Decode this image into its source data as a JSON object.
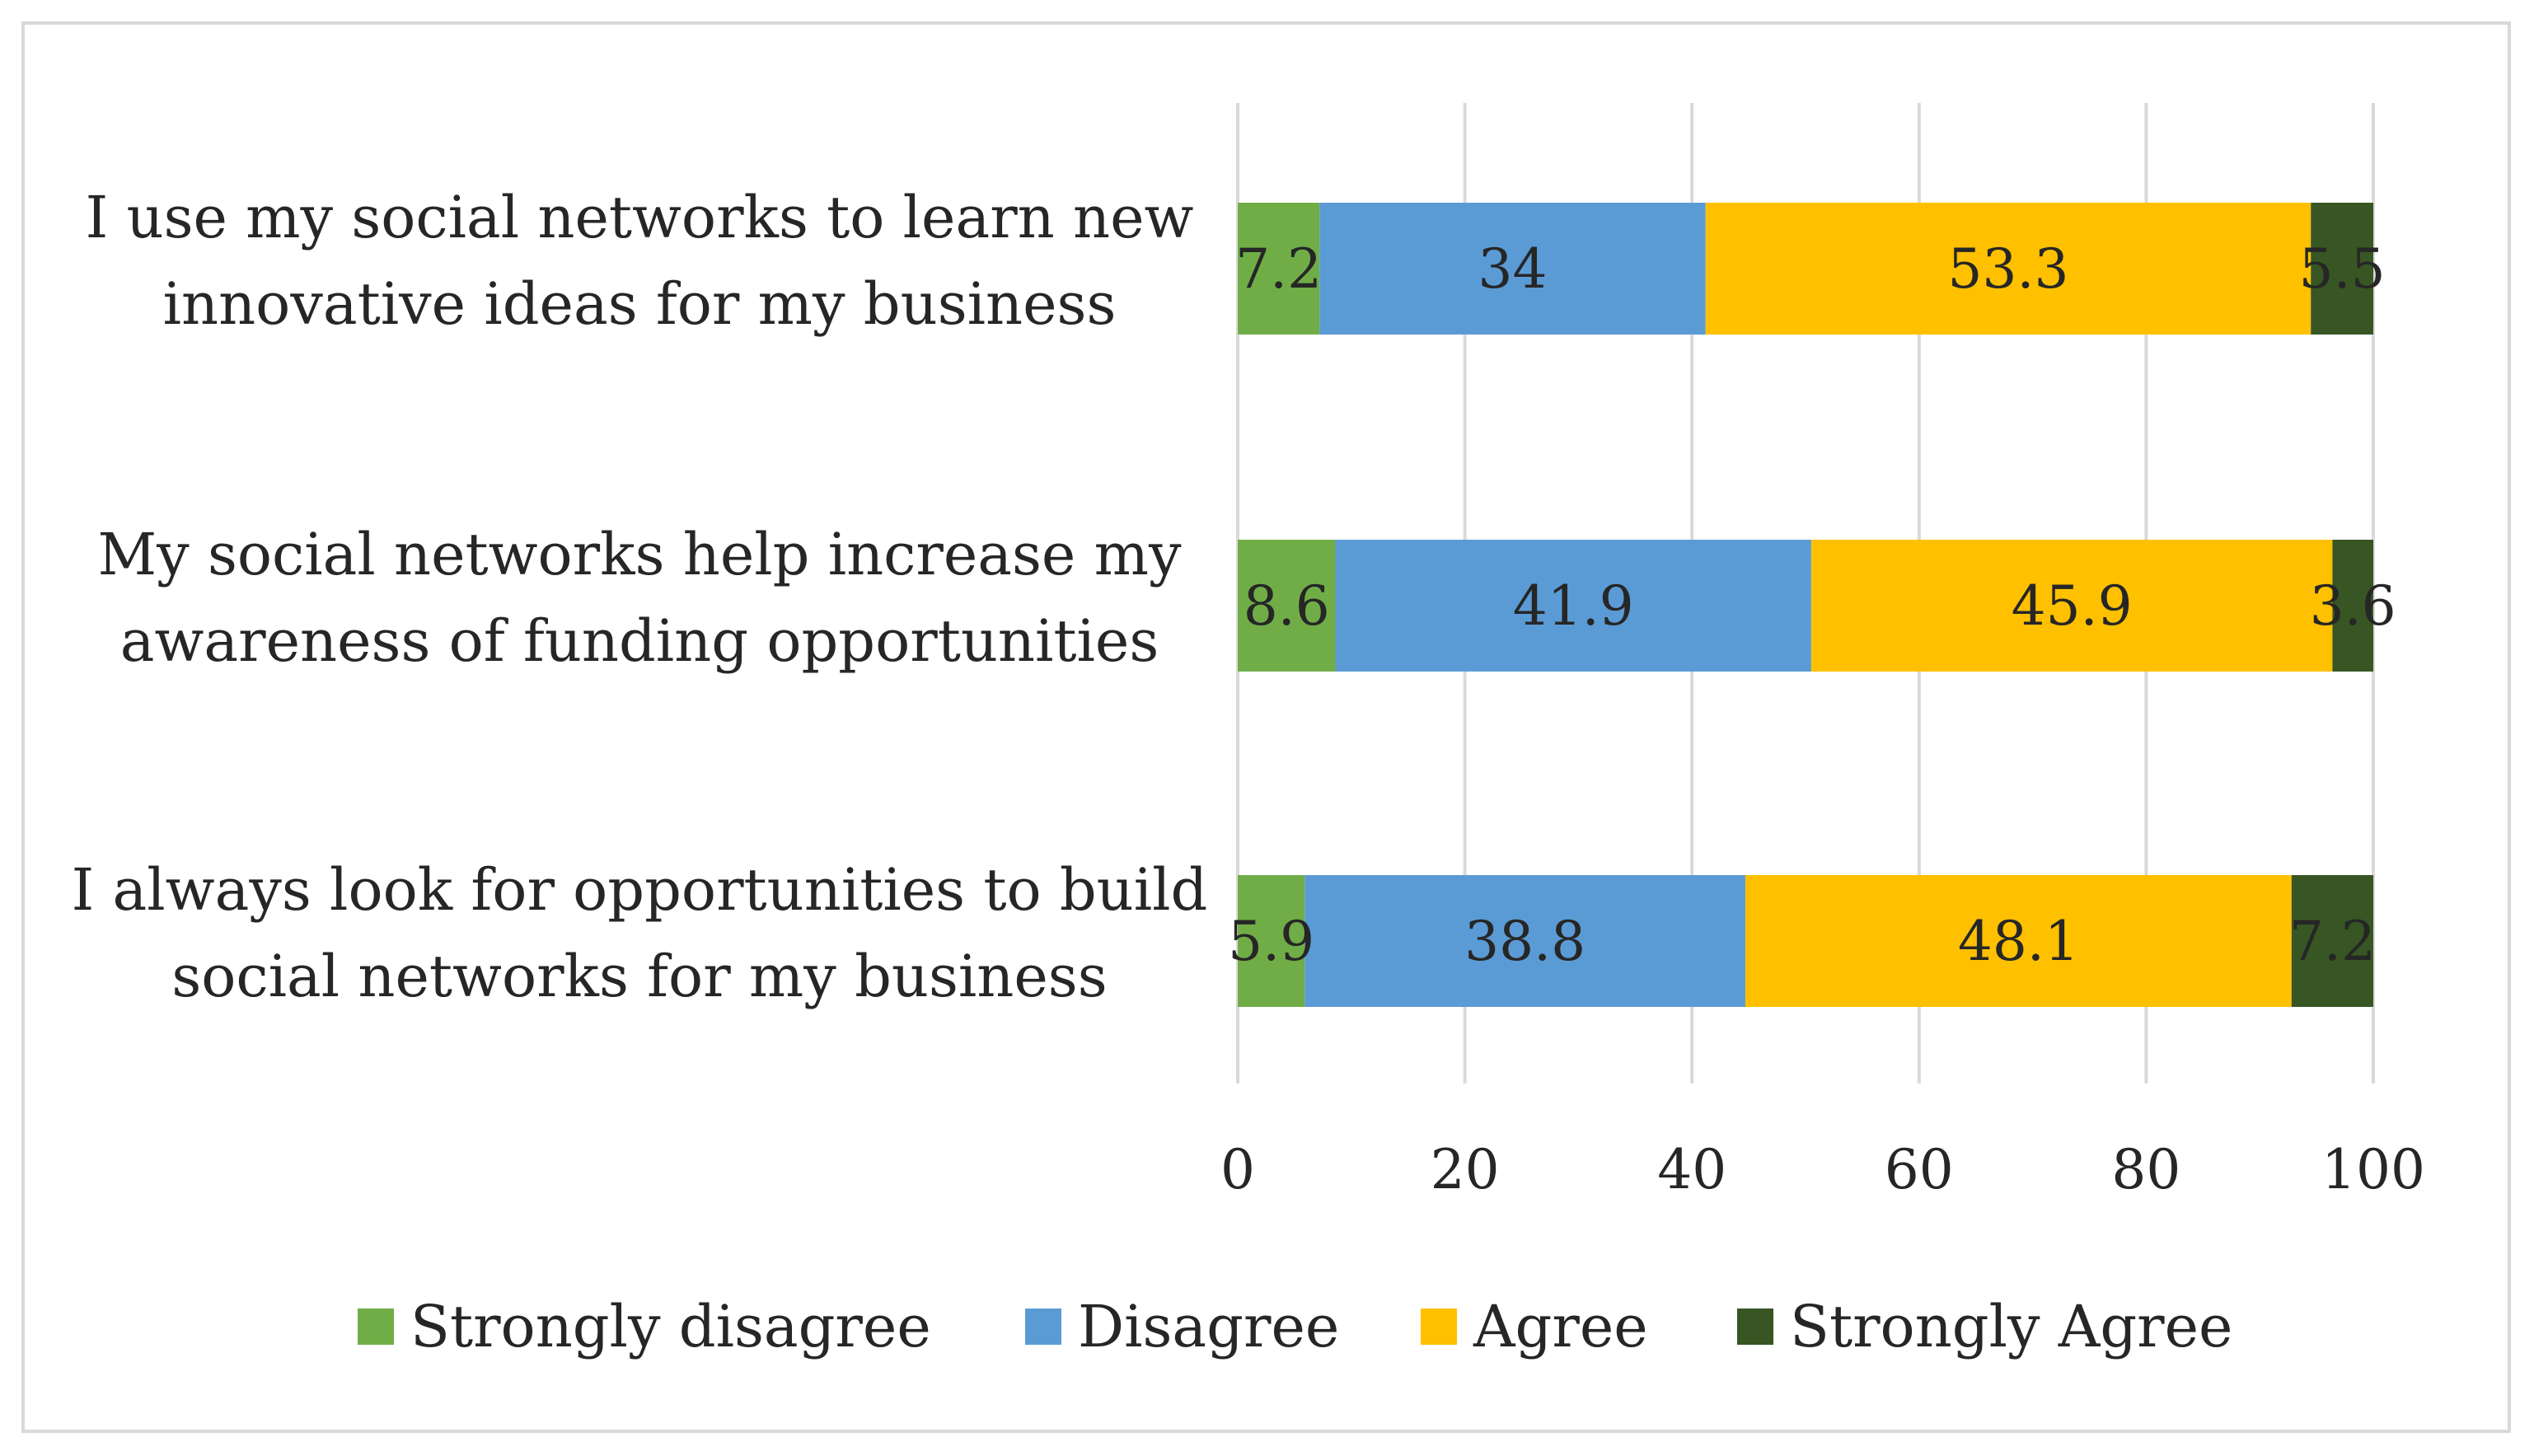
{
  "chart_data": {
    "type": "bar",
    "orientation": "horizontal",
    "stacked": true,
    "categories": [
      [
        "I use my social networks to learn new",
        "innovative ideas for my business"
      ],
      [
        "My social networks help increase my",
        "awareness of funding opportunities"
      ],
      [
        "I always look for opportunities to build",
        "social networks for my business"
      ]
    ],
    "series": [
      {
        "name": "Strongly disagree",
        "color": "#70ad47",
        "values": [
          7.2,
          8.6,
          5.9
        ]
      },
      {
        "name": "Disagree",
        "color": "#5b9bd5",
        "values": [
          34,
          41.9,
          38.8
        ]
      },
      {
        "name": "Agree",
        "color": "#ffc000",
        "values": [
          53.3,
          45.9,
          48.1
        ]
      },
      {
        "name": "Strongly Agree",
        "color": "#375623",
        "values": [
          5.5,
          3.6,
          7.2
        ]
      }
    ],
    "data_labels": [
      [
        "7.2",
        "8.6",
        "5.9"
      ],
      [
        "34",
        "41.9",
        "38.8"
      ],
      [
        "53.3",
        "45.9",
        "48.1"
      ],
      [
        "5.5",
        "3.6",
        "7.2"
      ]
    ],
    "xlim": [
      0,
      100
    ],
    "x_ticks": [
      0,
      20,
      40,
      60,
      80,
      100
    ],
    "x_tick_labels": [
      "0",
      "20",
      "40",
      "60",
      "80",
      "100"
    ],
    "grid": "vertical",
    "legend": "bottom",
    "title": "",
    "xlabel": "",
    "ylabel": ""
  }
}
